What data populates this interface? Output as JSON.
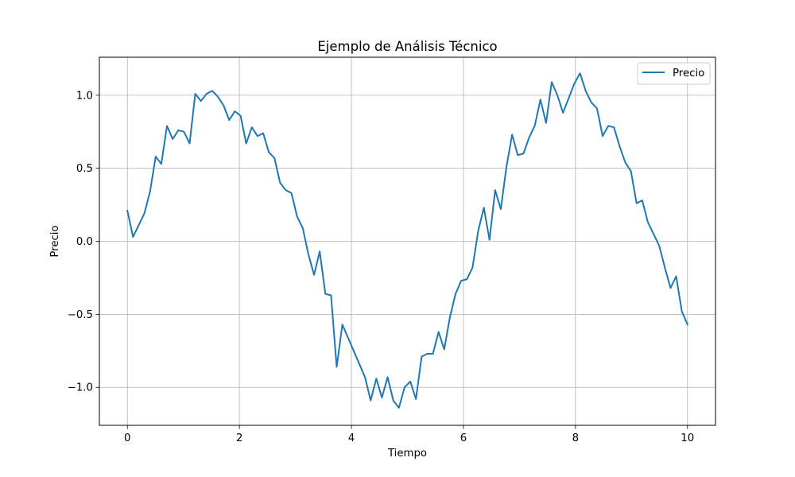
{
  "chart_data": {
    "type": "line",
    "title": "Ejemplo de Análisis Técnico",
    "xlabel": "Tiempo",
    "ylabel": "Precio",
    "xlim": [
      -0.5,
      10.5
    ],
    "ylim": [
      -1.26,
      1.26
    ],
    "x_ticks": [
      0,
      2,
      4,
      6,
      8,
      10
    ],
    "x_tick_labels": [
      "0",
      "2",
      "4",
      "6",
      "8",
      "10"
    ],
    "y_ticks": [
      -1.0,
      -0.5,
      0.0,
      0.5,
      1.0
    ],
    "y_tick_labels": [
      "−1.0",
      "−0.5",
      "0.0",
      "0.5",
      "1.0"
    ],
    "grid": true,
    "legend_position": "top-right",
    "series": [
      {
        "name": "Precio",
        "color": "#1f77b4",
        "x": [
          0.0,
          0.101,
          0.202,
          0.303,
          0.404,
          0.505,
          0.606,
          0.707,
          0.808,
          0.909,
          1.01,
          1.111,
          1.212,
          1.313,
          1.414,
          1.515,
          1.616,
          1.717,
          1.818,
          1.919,
          2.02,
          2.121,
          2.222,
          2.323,
          2.424,
          2.525,
          2.626,
          2.727,
          2.828,
          2.929,
          3.03,
          3.131,
          3.232,
          3.333,
          3.434,
          3.535,
          3.636,
          3.737,
          3.838,
          3.939,
          4.04,
          4.141,
          4.242,
          4.343,
          4.444,
          4.545,
          4.646,
          4.747,
          4.848,
          4.949,
          5.051,
          5.152,
          5.253,
          5.354,
          5.455,
          5.556,
          5.657,
          5.758,
          5.859,
          5.96,
          6.061,
          6.162,
          6.263,
          6.364,
          6.465,
          6.566,
          6.667,
          6.768,
          6.869,
          6.97,
          7.071,
          7.172,
          7.273,
          7.374,
          7.475,
          7.576,
          7.677,
          7.778,
          7.879,
          7.98,
          8.081,
          8.182,
          8.283,
          8.384,
          8.485,
          8.586,
          8.687,
          8.788,
          8.889,
          8.99,
          9.091,
          9.192,
          9.293,
          9.394,
          9.495,
          9.596,
          9.697,
          9.798,
          9.899,
          10.0
        ],
        "values": [
          0.21,
          0.03,
          0.11,
          0.19,
          0.34,
          0.58,
          0.53,
          0.79,
          0.7,
          0.76,
          0.75,
          0.67,
          1.01,
          0.96,
          1.01,
          1.03,
          0.99,
          0.93,
          0.83,
          0.89,
          0.86,
          0.67,
          0.78,
          0.72,
          0.74,
          0.61,
          0.57,
          0.4,
          0.35,
          0.33,
          0.17,
          0.09,
          -0.09,
          -0.23,
          -0.07,
          -0.36,
          -0.37,
          -0.86,
          -0.57,
          -0.66,
          -0.75,
          -0.84,
          -0.93,
          -1.09,
          -0.94,
          -1.07,
          -0.93,
          -1.09,
          -1.14,
          -1.0,
          -0.96,
          -1.08,
          -0.79,
          -0.77,
          -0.77,
          -0.62,
          -0.74,
          -0.52,
          -0.36,
          -0.27,
          -0.26,
          -0.18,
          0.07,
          0.23,
          0.01,
          0.35,
          0.22,
          0.51,
          0.73,
          0.59,
          0.6,
          0.71,
          0.79,
          0.97,
          0.81,
          1.09,
          1.0,
          0.88,
          0.98,
          1.08,
          1.15,
          1.03,
          0.95,
          0.91,
          0.72,
          0.79,
          0.78,
          0.65,
          0.54,
          0.48,
          0.26,
          0.28,
          0.13,
          0.05,
          -0.03,
          -0.18,
          -0.32,
          -0.24,
          -0.48,
          -0.57
        ]
      }
    ]
  }
}
